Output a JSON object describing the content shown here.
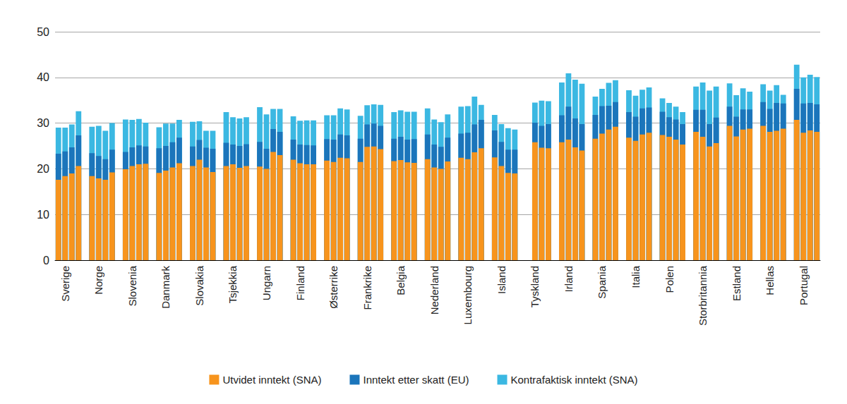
{
  "chart_data": {
    "type": "bar",
    "stacked": false,
    "grid": true,
    "legend": "bottom",
    "ylim": [
      0,
      50
    ],
    "yticks": [
      0,
      10,
      20,
      30,
      40,
      50
    ],
    "categories": [
      "Sverige",
      "Norge",
      "Slovenia",
      "Danmark",
      "Slovakia",
      "Tsjekkia",
      "Ungarn",
      "Finland",
      "Østerrike",
      "Frankrike",
      "Belgia",
      "Nederland",
      "Luxembourg",
      "Island",
      "Tyskland",
      "Irland",
      "Spania",
      "Italia",
      "Polen",
      "Storbritannia",
      "Estland",
      "Hellas",
      "Portugal"
    ],
    "series": [
      {
        "name": "Utvidet inntekt (SNA)",
        "color": "#f7941d",
        "values": [
          [
            17.6,
            18.4,
            19.0,
            20.6
          ],
          [
            18.4,
            17.9,
            17.6,
            19.2
          ],
          [
            19.9,
            20.6,
            21.0,
            21.1
          ],
          [
            19.1,
            19.6,
            20.3,
            21.2
          ],
          [
            20.6,
            22.0,
            20.3,
            19.3
          ],
          [
            20.6,
            21.0,
            20.2,
            20.6
          ],
          [
            20.5,
            20.0,
            23.7,
            23.0
          ],
          [
            22.0,
            21.2,
            21.0,
            21.0
          ],
          [
            21.8,
            21.5,
            22.4,
            22.3
          ],
          [
            21.5,
            24.8,
            24.9,
            24.3
          ],
          [
            21.7,
            21.9,
            21.4,
            21.3
          ],
          [
            22.1,
            20.3,
            20.0,
            21.6
          ],
          [
            22.4,
            22.1,
            23.6,
            24.5
          ],
          [
            22.5,
            20.6,
            19.1,
            19.0
          ],
          [
            null,
            25.8,
            24.6,
            24.5
          ],
          [
            25.8,
            26.4,
            24.7,
            24.0
          ],
          [
            26.6,
            27.7,
            28.6,
            29.2
          ],
          [
            26.8,
            26.1,
            27.5,
            27.9
          ],
          [
            27.4,
            27.0,
            26.4,
            25.3
          ],
          [
            28.1,
            27.0,
            24.9,
            25.6
          ],
          [
            29.4,
            27.1,
            28.6,
            28.8
          ],
          [
            29.4,
            28.1,
            28.3,
            28.8
          ],
          [
            30.7,
            27.9,
            28.4,
            28.1
          ]
        ]
      },
      {
        "name": "Inntekt etter skatt (EU)",
        "color": "#1b75bb",
        "values": [
          [
            23.3,
            23.8,
            24.7,
            27.3
          ],
          [
            23.4,
            22.8,
            22.1,
            24.2
          ],
          [
            23.7,
            24.7,
            25.1,
            24.9
          ],
          [
            24.5,
            25.0,
            25.8,
            26.8
          ],
          [
            24.9,
            26.3,
            24.6,
            24.4
          ],
          [
            25.7,
            25.3,
            25.0,
            25.4
          ],
          [
            25.9,
            24.4,
            28.7,
            28.1
          ],
          [
            26.4,
            25.3,
            25.2,
            25.1
          ],
          [
            26.5,
            26.4,
            27.5,
            27.3
          ],
          [
            26.6,
            29.7,
            29.9,
            29.4
          ],
          [
            26.6,
            27.0,
            26.4,
            26.5
          ],
          [
            27.5,
            25.3,
            24.8,
            26.8
          ],
          [
            27.7,
            27.9,
            29.7,
            30.7
          ],
          [
            28.4,
            25.9,
            24.2,
            24.2
          ],
          [
            null,
            30.1,
            29.4,
            29.8
          ],
          [
            31.7,
            33.6,
            31.0,
            29.8
          ],
          [
            31.8,
            33.7,
            33.8,
            34.6
          ],
          [
            32.4,
            31.4,
            33.2,
            33.4
          ],
          [
            32.5,
            31.3,
            30.8,
            29.8
          ],
          [
            32.9,
            32.9,
            29.8,
            31.2
          ],
          [
            33.6,
            31.4,
            33.0,
            33.0
          ],
          [
            34.6,
            33.1,
            34.4,
            34.3
          ],
          [
            37.5,
            34.3,
            34.4,
            34.1
          ]
        ]
      },
      {
        "name": "Kontrafaktisk inntekt (SNA)",
        "color": "#3bb8e2",
        "values": [
          [
            29.0,
            29.0,
            29.7,
            32.6
          ],
          [
            29.2,
            29.4,
            28.3,
            30.0
          ],
          [
            30.8,
            30.7,
            30.9,
            30.1
          ],
          [
            29.1,
            29.9,
            29.9,
            30.7
          ],
          [
            30.3,
            30.4,
            28.3,
            28.3
          ],
          [
            32.4,
            31.3,
            31.0,
            31.3
          ],
          [
            33.5,
            31.9,
            33.1,
            33.1
          ],
          [
            31.5,
            30.5,
            30.6,
            30.6
          ],
          [
            31.7,
            31.7,
            33.2,
            33.0
          ],
          [
            31.6,
            33.9,
            34.1,
            34.0
          ],
          [
            32.4,
            32.8,
            32.5,
            32.5
          ],
          [
            33.2,
            30.8,
            30.2,
            31.9
          ],
          [
            33.6,
            33.7,
            35.8,
            34.0
          ],
          [
            31.8,
            29.8,
            28.9,
            28.6
          ],
          [
            null,
            34.5,
            34.9,
            34.8
          ],
          [
            38.9,
            40.9,
            39.5,
            38.6
          ],
          [
            35.8,
            37.5,
            38.8,
            39.4
          ],
          [
            37.2,
            36.0,
            37.3,
            37.8
          ],
          [
            35.4,
            34.4,
            33.6,
            32.4
          ],
          [
            38.0,
            38.9,
            37.1,
            38.0
          ],
          [
            38.7,
            36.1,
            37.6,
            36.9
          ],
          [
            38.5,
            37.1,
            38.3,
            36.2
          ],
          [
            42.8,
            40.0,
            40.6,
            40.1
          ]
        ]
      }
    ]
  }
}
